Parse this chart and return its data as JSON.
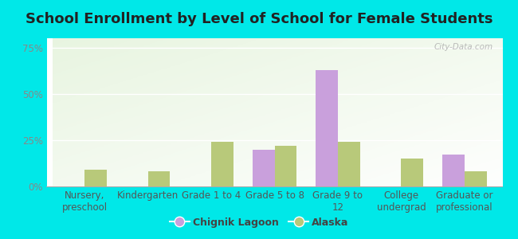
{
  "title": "School Enrollment by Level of School for Female Students",
  "categories": [
    "Nursery,\npreschool",
    "Kindergarten",
    "Grade 1 to 4",
    "Grade 5 to 8",
    "Grade 9 to\n12",
    "College\nundergrad",
    "Graduate or\nprofessional"
  ],
  "chignik_values": [
    0,
    0,
    0,
    20,
    63,
    0,
    17
  ],
  "alaska_values": [
    9,
    8,
    24,
    22,
    24,
    15,
    8
  ],
  "chignik_color": "#c9a0dc",
  "alaska_color": "#b8c97a",
  "bar_width": 0.35,
  "ylim": [
    0,
    80
  ],
  "yticks": [
    0,
    25,
    50,
    75
  ],
  "ytick_labels": [
    "0%",
    "25%",
    "50%",
    "75%"
  ],
  "background_color": "#00e8e8",
  "legend_chignik": "Chignik Lagoon",
  "legend_alaska": "Alaska",
  "watermark": "City-Data.com",
  "title_fontsize": 13,
  "tick_fontsize": 8.5,
  "legend_fontsize": 9
}
